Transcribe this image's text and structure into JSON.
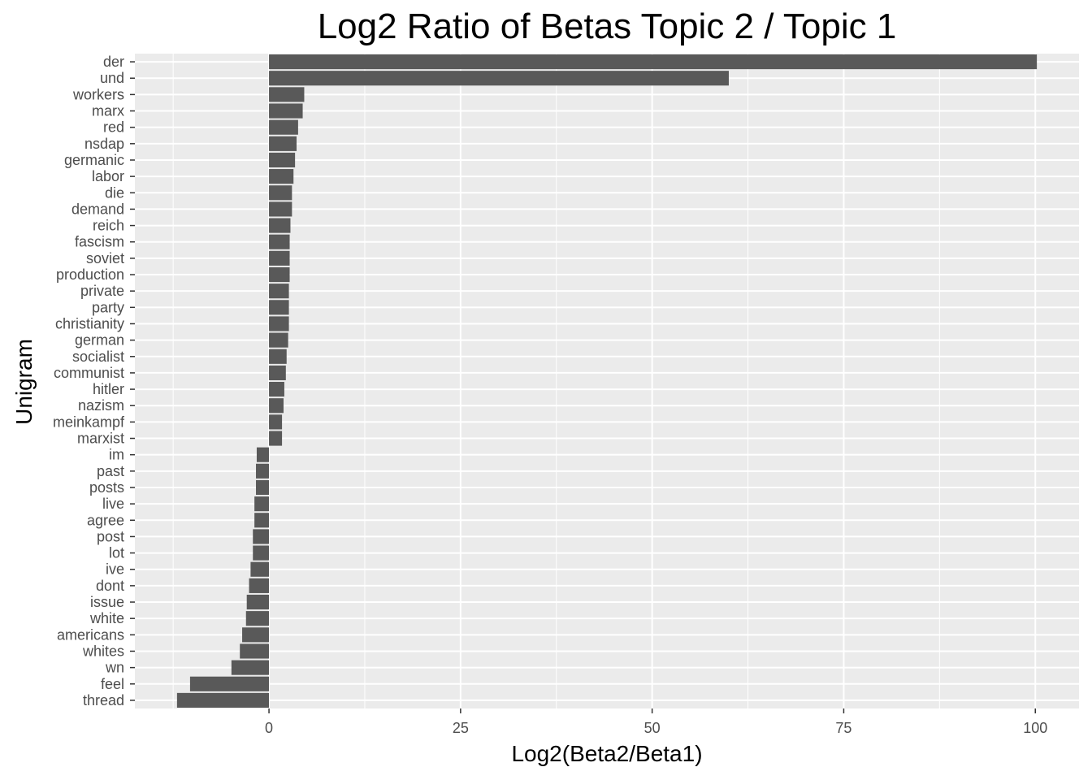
{
  "chart_data": {
    "type": "bar",
    "orientation": "horizontal",
    "title": "Log2 Ratio of Betas Topic 2 / Topic 1",
    "xlabel": "Log2(Beta2/Beta1)",
    "ylabel": "Unigram",
    "xlim": [
      -17.5,
      105.7
    ],
    "xticks": [
      0,
      25,
      50,
      75,
      100
    ],
    "grid": true,
    "colors": {
      "bar": "#595959",
      "panel": "#ebebeb",
      "grid": "#ffffff"
    },
    "categories": [
      "der",
      "und",
      "workers",
      "marx",
      "red",
      "nsdap",
      "germanic",
      "labor",
      "die",
      "demand",
      "reich",
      "fascism",
      "soviet",
      "production",
      "private",
      "party",
      "christianity",
      "german",
      "socialist",
      "communist",
      "hitler",
      "nazism",
      "meinkampf",
      "marxist",
      "im",
      "past",
      "posts",
      "live",
      "agree",
      "post",
      "lot",
      "ive",
      "dont",
      "issue",
      "white",
      "americans",
      "whites",
      "wn",
      "feel",
      "thread"
    ],
    "values": [
      100.2,
      60,
      4.6,
      4.4,
      3.8,
      3.6,
      3.4,
      3.2,
      3.0,
      3.0,
      2.8,
      2.7,
      2.7,
      2.7,
      2.6,
      2.6,
      2.6,
      2.5,
      2.3,
      2.2,
      2.0,
      1.9,
      1.7,
      1.7,
      -1.6,
      -1.7,
      -1.7,
      -1.9,
      -1.9,
      -2.1,
      -2.1,
      -2.4,
      -2.6,
      -2.9,
      -3.0,
      -3.5,
      -3.8,
      -4.9,
      -10.3,
      -12.0
    ]
  }
}
